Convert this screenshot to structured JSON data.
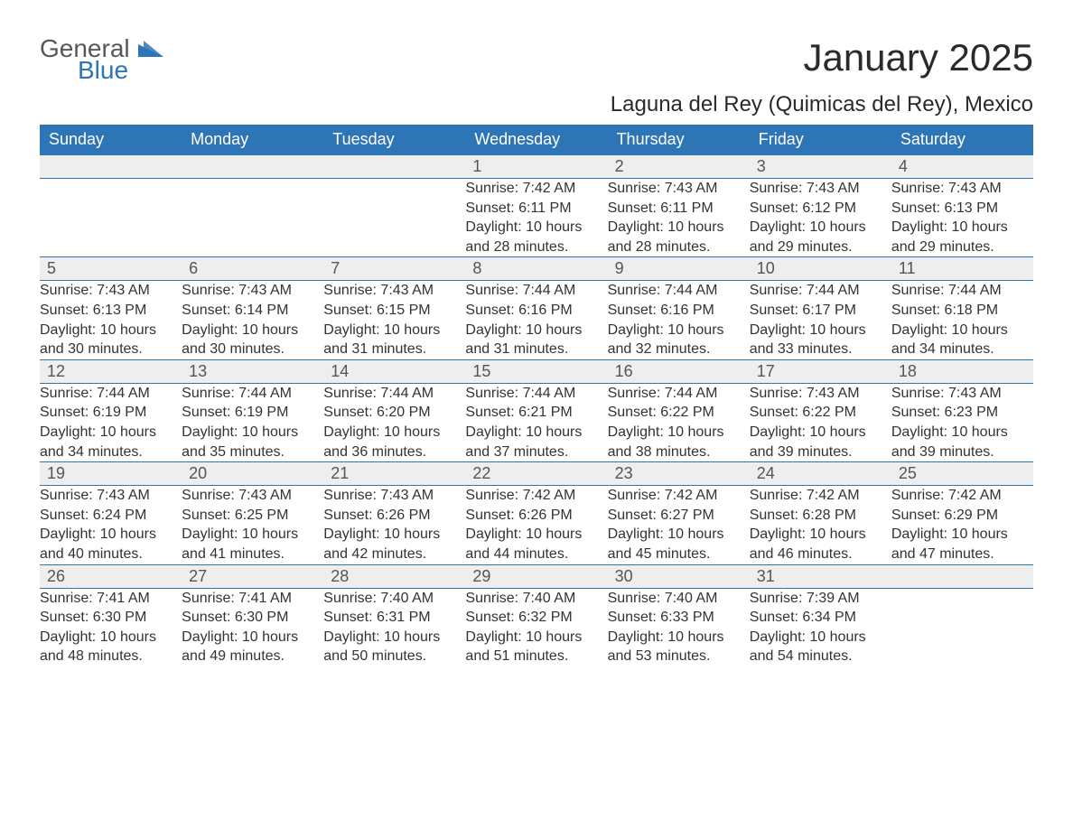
{
  "brand": {
    "general": "General",
    "blue": "Blue",
    "shape_color": "#2e75b6"
  },
  "title": "January 2025",
  "subtitle": "Laguna del Rey (Quimicas del Rey), Mexico",
  "colors": {
    "header_bg": "#2e75b6",
    "header_text": "#ffffff",
    "daynum_bg": "#eeeeee",
    "border": "#2e75b6",
    "body_text": "#333333",
    "page_bg": "#ffffff"
  },
  "typography": {
    "title_fontsize": 42,
    "subtitle_fontsize": 24,
    "header_fontsize": 18,
    "daynum_fontsize": 18,
    "detail_fontsize": 16
  },
  "weekdays": [
    "Sunday",
    "Monday",
    "Tuesday",
    "Wednesday",
    "Thursday",
    "Friday",
    "Saturday"
  ],
  "weeks": [
    [
      null,
      null,
      null,
      {
        "n": "1",
        "sunrise": "Sunrise: 7:42 AM",
        "sunset": "Sunset: 6:11 PM",
        "d1": "Daylight: 10 hours",
        "d2": "and 28 minutes."
      },
      {
        "n": "2",
        "sunrise": "Sunrise: 7:43 AM",
        "sunset": "Sunset: 6:11 PM",
        "d1": "Daylight: 10 hours",
        "d2": "and 28 minutes."
      },
      {
        "n": "3",
        "sunrise": "Sunrise: 7:43 AM",
        "sunset": "Sunset: 6:12 PM",
        "d1": "Daylight: 10 hours",
        "d2": "and 29 minutes."
      },
      {
        "n": "4",
        "sunrise": "Sunrise: 7:43 AM",
        "sunset": "Sunset: 6:13 PM",
        "d1": "Daylight: 10 hours",
        "d2": "and 29 minutes."
      }
    ],
    [
      {
        "n": "5",
        "sunrise": "Sunrise: 7:43 AM",
        "sunset": "Sunset: 6:13 PM",
        "d1": "Daylight: 10 hours",
        "d2": "and 30 minutes."
      },
      {
        "n": "6",
        "sunrise": "Sunrise: 7:43 AM",
        "sunset": "Sunset: 6:14 PM",
        "d1": "Daylight: 10 hours",
        "d2": "and 30 minutes."
      },
      {
        "n": "7",
        "sunrise": "Sunrise: 7:43 AM",
        "sunset": "Sunset: 6:15 PM",
        "d1": "Daylight: 10 hours",
        "d2": "and 31 minutes."
      },
      {
        "n": "8",
        "sunrise": "Sunrise: 7:44 AM",
        "sunset": "Sunset: 6:16 PM",
        "d1": "Daylight: 10 hours",
        "d2": "and 31 minutes."
      },
      {
        "n": "9",
        "sunrise": "Sunrise: 7:44 AM",
        "sunset": "Sunset: 6:16 PM",
        "d1": "Daylight: 10 hours",
        "d2": "and 32 minutes."
      },
      {
        "n": "10",
        "sunrise": "Sunrise: 7:44 AM",
        "sunset": "Sunset: 6:17 PM",
        "d1": "Daylight: 10 hours",
        "d2": "and 33 minutes."
      },
      {
        "n": "11",
        "sunrise": "Sunrise: 7:44 AM",
        "sunset": "Sunset: 6:18 PM",
        "d1": "Daylight: 10 hours",
        "d2": "and 34 minutes."
      }
    ],
    [
      {
        "n": "12",
        "sunrise": "Sunrise: 7:44 AM",
        "sunset": "Sunset: 6:19 PM",
        "d1": "Daylight: 10 hours",
        "d2": "and 34 minutes."
      },
      {
        "n": "13",
        "sunrise": "Sunrise: 7:44 AM",
        "sunset": "Sunset: 6:19 PM",
        "d1": "Daylight: 10 hours",
        "d2": "and 35 minutes."
      },
      {
        "n": "14",
        "sunrise": "Sunrise: 7:44 AM",
        "sunset": "Sunset: 6:20 PM",
        "d1": "Daylight: 10 hours",
        "d2": "and 36 minutes."
      },
      {
        "n": "15",
        "sunrise": "Sunrise: 7:44 AM",
        "sunset": "Sunset: 6:21 PM",
        "d1": "Daylight: 10 hours",
        "d2": "and 37 minutes."
      },
      {
        "n": "16",
        "sunrise": "Sunrise: 7:44 AM",
        "sunset": "Sunset: 6:22 PM",
        "d1": "Daylight: 10 hours",
        "d2": "and 38 minutes."
      },
      {
        "n": "17",
        "sunrise": "Sunrise: 7:43 AM",
        "sunset": "Sunset: 6:22 PM",
        "d1": "Daylight: 10 hours",
        "d2": "and 39 minutes."
      },
      {
        "n": "18",
        "sunrise": "Sunrise: 7:43 AM",
        "sunset": "Sunset: 6:23 PM",
        "d1": "Daylight: 10 hours",
        "d2": "and 39 minutes."
      }
    ],
    [
      {
        "n": "19",
        "sunrise": "Sunrise: 7:43 AM",
        "sunset": "Sunset: 6:24 PM",
        "d1": "Daylight: 10 hours",
        "d2": "and 40 minutes."
      },
      {
        "n": "20",
        "sunrise": "Sunrise: 7:43 AM",
        "sunset": "Sunset: 6:25 PM",
        "d1": "Daylight: 10 hours",
        "d2": "and 41 minutes."
      },
      {
        "n": "21",
        "sunrise": "Sunrise: 7:43 AM",
        "sunset": "Sunset: 6:26 PM",
        "d1": "Daylight: 10 hours",
        "d2": "and 42 minutes."
      },
      {
        "n": "22",
        "sunrise": "Sunrise: 7:42 AM",
        "sunset": "Sunset: 6:26 PM",
        "d1": "Daylight: 10 hours",
        "d2": "and 44 minutes."
      },
      {
        "n": "23",
        "sunrise": "Sunrise: 7:42 AM",
        "sunset": "Sunset: 6:27 PM",
        "d1": "Daylight: 10 hours",
        "d2": "and 45 minutes."
      },
      {
        "n": "24",
        "sunrise": "Sunrise: 7:42 AM",
        "sunset": "Sunset: 6:28 PM",
        "d1": "Daylight: 10 hours",
        "d2": "and 46 minutes."
      },
      {
        "n": "25",
        "sunrise": "Sunrise: 7:42 AM",
        "sunset": "Sunset: 6:29 PM",
        "d1": "Daylight: 10 hours",
        "d2": "and 47 minutes."
      }
    ],
    [
      {
        "n": "26",
        "sunrise": "Sunrise: 7:41 AM",
        "sunset": "Sunset: 6:30 PM",
        "d1": "Daylight: 10 hours",
        "d2": "and 48 minutes."
      },
      {
        "n": "27",
        "sunrise": "Sunrise: 7:41 AM",
        "sunset": "Sunset: 6:30 PM",
        "d1": "Daylight: 10 hours",
        "d2": "and 49 minutes."
      },
      {
        "n": "28",
        "sunrise": "Sunrise: 7:40 AM",
        "sunset": "Sunset: 6:31 PM",
        "d1": "Daylight: 10 hours",
        "d2": "and 50 minutes."
      },
      {
        "n": "29",
        "sunrise": "Sunrise: 7:40 AM",
        "sunset": "Sunset: 6:32 PM",
        "d1": "Daylight: 10 hours",
        "d2": "and 51 minutes."
      },
      {
        "n": "30",
        "sunrise": "Sunrise: 7:40 AM",
        "sunset": "Sunset: 6:33 PM",
        "d1": "Daylight: 10 hours",
        "d2": "and 53 minutes."
      },
      {
        "n": "31",
        "sunrise": "Sunrise: 7:39 AM",
        "sunset": "Sunset: 6:34 PM",
        "d1": "Daylight: 10 hours",
        "d2": "and 54 minutes."
      },
      null
    ]
  ]
}
